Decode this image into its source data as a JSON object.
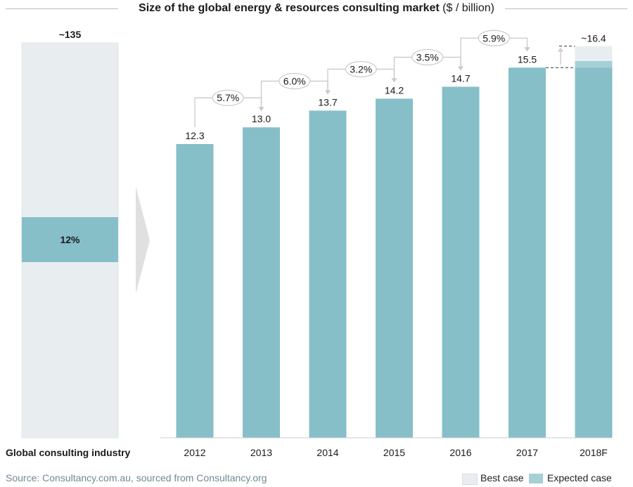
{
  "title": {
    "bold": "Size of the global energy & resources consulting market",
    "normal": "($ / billion)"
  },
  "colors": {
    "bar": "#86bfc8",
    "best_case": "#e8eef0",
    "expected_case": "#a6cfd6",
    "industry_bg": "#e8eef0",
    "share": "#86bfc8"
  },
  "chart_data": [
    {
      "type": "bar",
      "categories": [
        "Global consulting industry"
      ],
      "values": [
        135
      ],
      "data_labels": [
        "~135"
      ],
      "segment": {
        "label": "12%",
        "value": 12
      }
    },
    {
      "type": "bar",
      "categories": [
        "2012",
        "2013",
        "2014",
        "2015",
        "2016",
        "2017",
        "2018F"
      ],
      "series": [
        {
          "name": "Expected case",
          "values": [
            12.3,
            13.0,
            13.7,
            14.2,
            14.7,
            15.5,
            15.5
          ]
        },
        {
          "name": "Best case",
          "values": [
            null,
            null,
            null,
            null,
            null,
            null,
            16.4
          ]
        }
      ],
      "data_labels": [
        "12.3",
        "13.0",
        "13.7",
        "14.2",
        "14.7",
        "15.5",
        "~16.4"
      ],
      "growth_labels": [
        "5.7%",
        "6.0%",
        "3.2%",
        "3.5%",
        "5.9%"
      ],
      "ylim": [
        0,
        17
      ],
      "legend": [
        "Best case",
        "Expected case"
      ]
    }
  ],
  "source": "Source: Consultancy.com.au, sourced from Consultancy.org"
}
